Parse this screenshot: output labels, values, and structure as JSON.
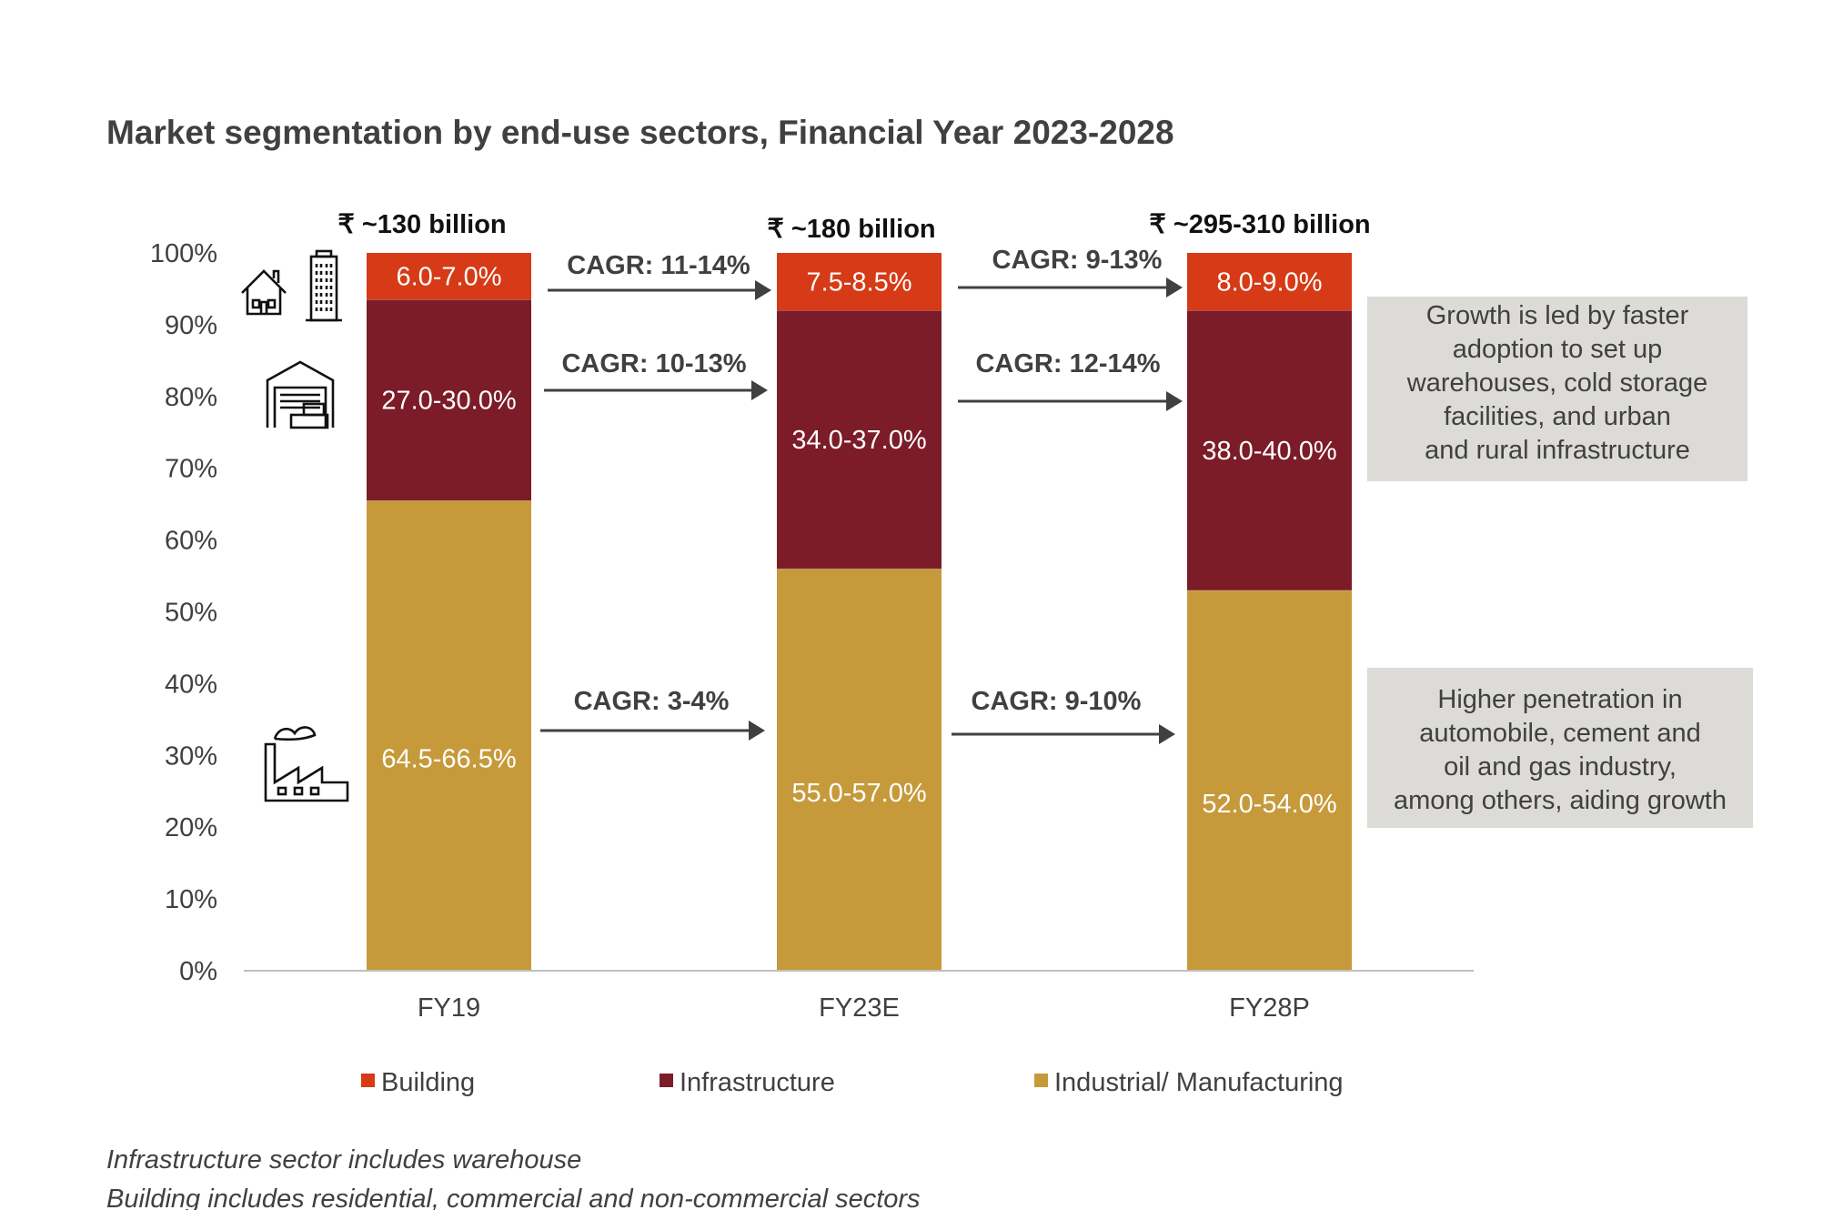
{
  "chart_data": {
    "type": "bar",
    "stacked": true,
    "title": "Market segmentation by end-use sectors, Financial Year 2023-2028",
    "categories": [
      "FY19",
      "FY23E",
      "FY28P"
    ],
    "ylim": [
      0,
      100
    ],
    "yticks": [
      "0%",
      "10%",
      "20%",
      "30%",
      "40%",
      "50%",
      "60%",
      "70%",
      "80%",
      "90%",
      "100%"
    ],
    "series": [
      {
        "name": "Industrial/ Manufacturing",
        "color": "#c69a3a",
        "values": [
          65.5,
          56,
          53
        ],
        "labels": [
          "64.5-66.5%",
          "55.0-57.0%",
          "52.0-54.0%"
        ]
      },
      {
        "name": "Infrastructure",
        "color": "#7b1c28",
        "values": [
          28,
          36,
          39
        ],
        "labels": [
          "27.0-30.0%",
          "34.0-37.0%",
          "38.0-40.0%"
        ]
      },
      {
        "name": "Building",
        "color": "#d63a16",
        "values": [
          6.5,
          8,
          8
        ],
        "labels": [
          "6.0-7.0%",
          "7.5-8.5%",
          "8.0-9.0%"
        ]
      }
    ],
    "totals": [
      "₹ ~130 billion",
      "₹ ~180 billion",
      "₹ ~295-310 billion"
    ],
    "cagr": {
      "building": [
        "CAGR: 11-14%",
        "CAGR: 9-13%"
      ],
      "infrastructure": [
        "CAGR: 10-13%",
        "CAGR: 12-14%"
      ],
      "industrial": [
        "CAGR: 3-4%",
        "CAGR: 9-10%"
      ]
    },
    "legend": [
      "Building",
      "Infrastructure",
      "Industrial/ Manufacturing"
    ],
    "legend_placement": "bottom",
    "annotations": [
      [
        "Growth is led by faster",
        "adoption to set up",
        "warehouses, cold storage",
        "facilities, and urban",
        "and rural infrastructure"
      ],
      [
        "Higher penetration in",
        "automobile, cement and",
        "oil and gas industry,",
        "among others, aiding growth"
      ]
    ],
    "footnotes": [
      "Infrastructure sector includes warehouse",
      "Building includes residential, commercial and non-commercial sectors"
    ],
    "grid": false
  }
}
